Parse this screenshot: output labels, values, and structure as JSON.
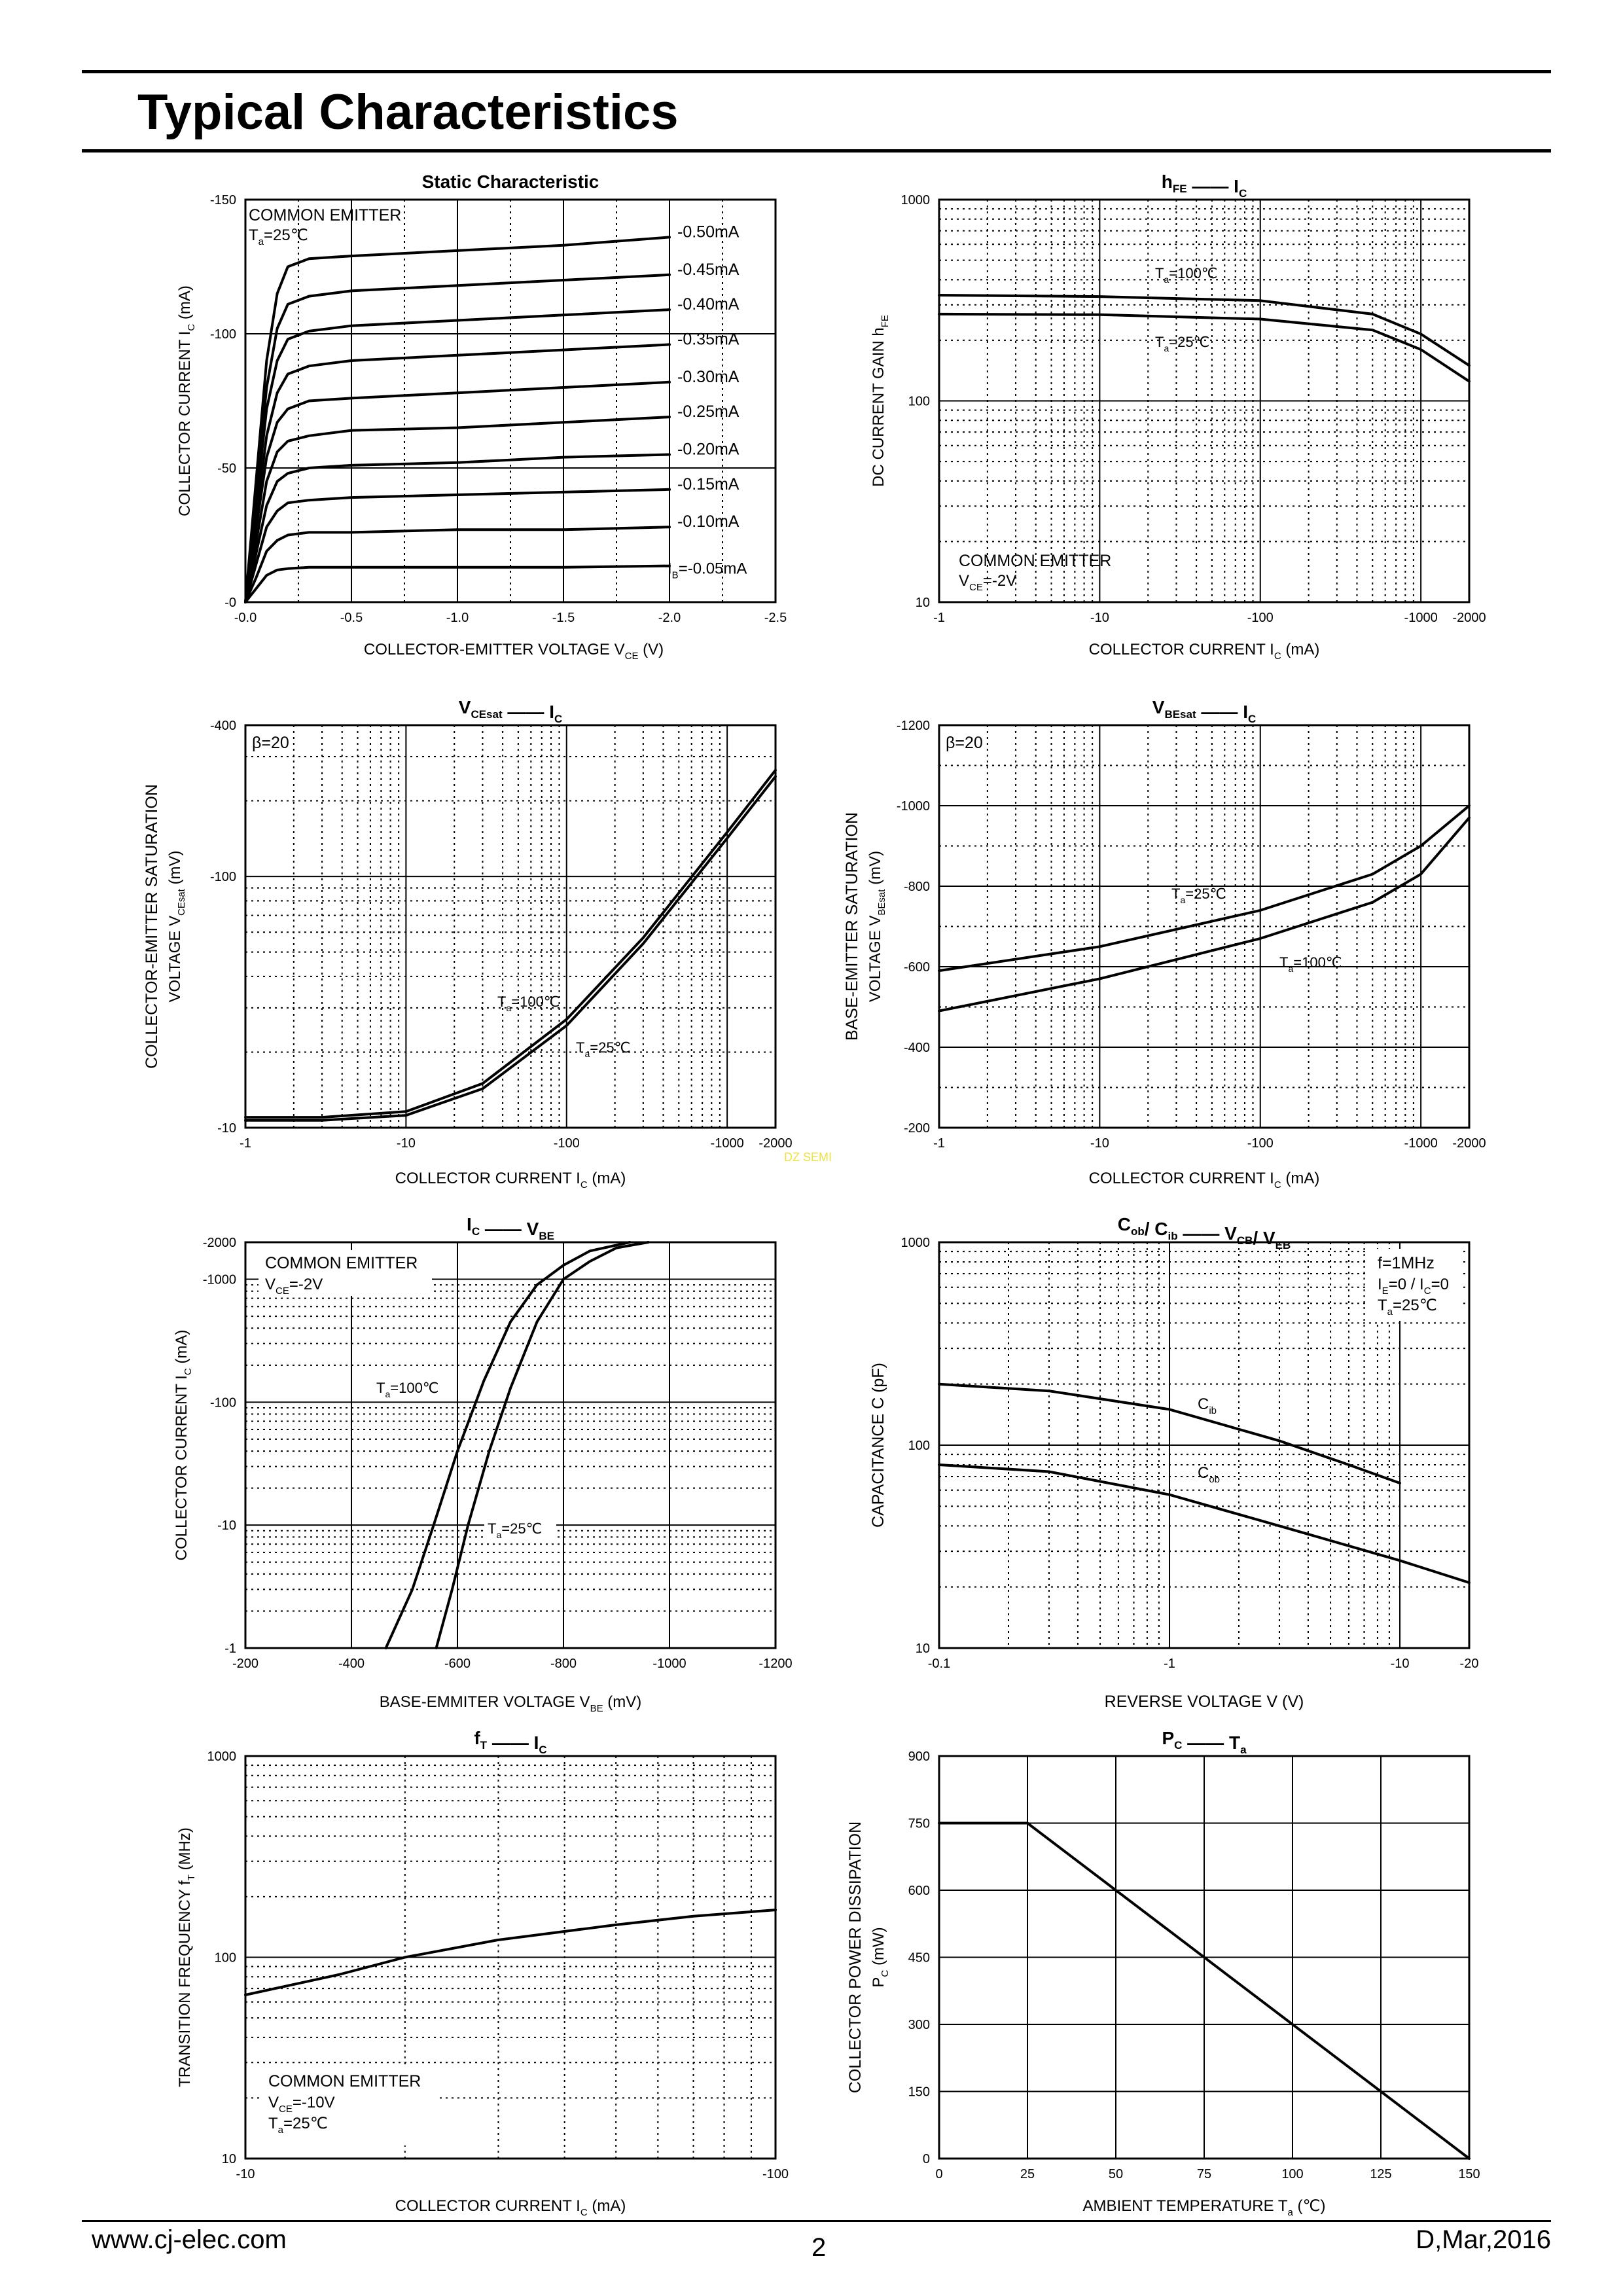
{
  "page": {
    "title": "Typical Characteristics",
    "footer": {
      "website": "www.cj-elec.com",
      "page_number": "2",
      "revision": "D,Mar,2016"
    },
    "watermark": "DZ SEMI"
  },
  "chart_data": [
    {
      "id": "static",
      "type": "line",
      "title": "Static Characteristic",
      "title_parts": [
        "Static Characteristic"
      ],
      "xscale": "linear",
      "yscale": "linear",
      "xlim": [
        0,
        -2.5
      ],
      "ylim": [
        0,
        -150
      ],
      "xticks": [
        0,
        -0.5,
        -1.0,
        -1.5,
        -2.0,
        -2.5
      ],
      "xtick_labels": [
        "-0.0",
        "-0.5",
        "-1.0",
        "-1.5",
        "-2.0",
        "-2.5"
      ],
      "yticks": [
        0,
        -50,
        -100,
        -150
      ],
      "ytick_labels": [
        "-0",
        "-50",
        "-100",
        "-150"
      ],
      "xlabel": "COLLECTOR-EMITTER VOLTAGE   V    (V)",
      "xlabel_sub": "CE",
      "ylabel": "COLLECTOR CURRENT   I    (mA)",
      "ylabel_sub": "C",
      "annotations": [
        "COMMON EMITTER",
        "T =25℃"
      ],
      "annotation_subs": [
        "",
        "a"
      ],
      "series": [
        {
          "name": "-0.50mA",
          "x": [
            0,
            -0.05,
            -0.1,
            -0.15,
            -0.2,
            -0.3,
            -0.5,
            -1.0,
            -1.5,
            -2.0
          ],
          "y": [
            0,
            -45,
            -90,
            -115,
            -125,
            -128,
            -129,
            -131,
            -133,
            -136
          ]
        },
        {
          "name": "-0.45mA",
          "x": [
            0,
            -0.05,
            -0.1,
            -0.15,
            -0.2,
            -0.3,
            -0.5,
            -1.0,
            -1.5,
            -2.0
          ],
          "y": [
            0,
            -40,
            -80,
            -102,
            -111,
            -114,
            -116,
            -118,
            -120,
            -122
          ]
        },
        {
          "name": "-0.40mA",
          "x": [
            0,
            -0.05,
            -0.1,
            -0.15,
            -0.2,
            -0.3,
            -0.5,
            -1.0,
            -1.5,
            -2.0
          ],
          "y": [
            0,
            -36,
            -72,
            -90,
            -98,
            -101,
            -103,
            -105,
            -107,
            -109
          ]
        },
        {
          "name": "-0.35mA",
          "x": [
            0,
            -0.05,
            -0.1,
            -0.15,
            -0.2,
            -0.3,
            -0.5,
            -1.0,
            -1.5,
            -2.0
          ],
          "y": [
            0,
            -31,
            -62,
            -78,
            -85,
            -88,
            -90,
            -92,
            -94,
            -96
          ]
        },
        {
          "name": "-0.30mA",
          "x": [
            0,
            -0.05,
            -0.1,
            -0.15,
            -0.2,
            -0.3,
            -0.5,
            -1.0,
            -1.5,
            -2.0
          ],
          "y": [
            0,
            -27,
            -54,
            -67,
            -72,
            -75,
            -76,
            -78,
            -80,
            -82
          ]
        },
        {
          "name": "-0.25mA",
          "x": [
            0,
            -0.05,
            -0.1,
            -0.15,
            -0.2,
            -0.3,
            -0.5,
            -1.0,
            -1.5,
            -2.0
          ],
          "y": [
            0,
            -22,
            -45,
            -56,
            -60,
            -62,
            -64,
            -65,
            -67,
            -69
          ]
        },
        {
          "name": "-0.20mA",
          "x": [
            0,
            -0.05,
            -0.1,
            -0.15,
            -0.2,
            -0.3,
            -0.5,
            -1.0,
            -1.5,
            -2.0
          ],
          "y": [
            0,
            -18,
            -36,
            -45,
            -48,
            -50,
            -51,
            -52,
            -54,
            -55
          ]
        },
        {
          "name": "-0.15mA",
          "x": [
            0,
            -0.05,
            -0.1,
            -0.15,
            -0.2,
            -0.3,
            -0.5,
            -1.0,
            -1.5,
            -2.0
          ],
          "y": [
            0,
            -14,
            -28,
            -34,
            -37,
            -38,
            -39,
            -40,
            -41,
            -42
          ]
        },
        {
          "name": "-0.10mA",
          "x": [
            0,
            -0.05,
            -0.1,
            -0.15,
            -0.2,
            -0.3,
            -0.5,
            -1.0,
            -1.5,
            -2.0
          ],
          "y": [
            0,
            -9,
            -19,
            -23,
            -25,
            -26,
            -26,
            -27,
            -27,
            -28
          ]
        },
        {
          "name": "I =-0.05mA",
          "name_sub": "B",
          "x": [
            0,
            -0.05,
            -0.1,
            -0.15,
            -0.2,
            -0.3,
            -0.5,
            -1.0,
            -1.5,
            -2.0
          ],
          "y": [
            0,
            -5,
            -10,
            -12,
            -12.5,
            -13,
            -13,
            -13,
            -13,
            -13.5
          ]
        }
      ]
    },
    {
      "id": "hfe",
      "type": "line",
      "title": "h      I",
      "title_parts": [
        "h",
        "FE",
        "I",
        "C"
      ],
      "xscale": "log",
      "yscale": "log",
      "xlim": [
        -1,
        -2000
      ],
      "ylim": [
        10,
        1000
      ],
      "xticks": [
        -1,
        -10,
        -100,
        -1000,
        -2000
      ],
      "xtick_labels": [
        "-1",
        "-10",
        "-100",
        "-1000",
        "-2000"
      ],
      "yticks": [
        10,
        100,
        1000
      ],
      "ytick_labels": [
        "10",
        "100",
        "1000"
      ],
      "xlabel": "COLLECTOR CURRENT   I    (mA)",
      "xlabel_sub": "C",
      "ylabel": "DC CURRENT GAIN    h",
      "ylabel_sub": "FE",
      "annotations": [
        "COMMON EMITTER",
        "V =-2V"
      ],
      "annotation_subs": [
        "",
        "CE"
      ],
      "series": [
        {
          "name": "T =100℃",
          "name_sub": "a",
          "x": [
            -1,
            -10,
            -100,
            -500,
            -1000,
            -2000
          ],
          "y": [
            335,
            330,
            315,
            270,
            215,
            150
          ]
        },
        {
          "name": "T =25℃",
          "name_sub": "a",
          "x": [
            -1,
            -10,
            -100,
            -500,
            -1000,
            -2000
          ],
          "y": [
            270,
            268,
            255,
            225,
            180,
            125
          ]
        }
      ]
    },
    {
      "id": "vcesat",
      "type": "line",
      "title": "V       I",
      "title_parts": [
        "V",
        "CEsat",
        "I",
        "C"
      ],
      "xscale": "log",
      "yscale": "log",
      "xlim": [
        -1,
        -2000
      ],
      "ylim": [
        -10,
        -400
      ],
      "xticks": [
        -1,
        -10,
        -100,
        -1000,
        -2000
      ],
      "xtick_labels": [
        "-1",
        "-10",
        "-100",
        "-1000",
        "-2000"
      ],
      "yticks": [
        -10,
        -100,
        -400
      ],
      "ytick_labels": [
        "-10",
        "-100",
        "-400"
      ],
      "xlabel": "COLLECTOR CURRENT   I    (mA)",
      "xlabel_sub": "C",
      "ylabel": "COLLECTOR-EMITTER SATURATION",
      "ylabel2": "VOLTAGE    V        (mV)",
      "ylabel2_sub": "CEsat",
      "annotations": [
        "β=20"
      ],
      "series": [
        {
          "name": "T =100℃",
          "name_sub": "a",
          "x": [
            -1,
            -3,
            -10,
            -30,
            -100,
            -300,
            -1000,
            -2000
          ],
          "y": [
            -11,
            -11,
            -11.6,
            -15,
            -27,
            -57,
            -150,
            -265
          ]
        },
        {
          "name": "T =25℃",
          "name_sub": "a",
          "x": [
            -1,
            -3,
            -10,
            -30,
            -100,
            -300,
            -1000,
            -2000
          ],
          "y": [
            -10.7,
            -10.7,
            -11.2,
            -14.3,
            -25.5,
            -54,
            -142,
            -250
          ]
        }
      ]
    },
    {
      "id": "vbesat",
      "type": "line",
      "title": "V       I",
      "title_parts": [
        "V",
        "BEsat",
        "I",
        "C"
      ],
      "xscale": "log",
      "yscale": "linear",
      "xlim": [
        -1,
        -2000
      ],
      "ylim": [
        -200,
        -1200
      ],
      "xticks": [
        -1,
        -10,
        -100,
        -1000,
        -2000
      ],
      "xtick_labels": [
        "-1",
        "-10",
        "-100",
        "-1000",
        "-2000"
      ],
      "yticks": [
        -200,
        -400,
        -600,
        -800,
        -1000,
        -1200
      ],
      "ytick_labels": [
        "-200",
        "-400",
        "-600",
        "-800",
        "-1000",
        "-1200"
      ],
      "xlabel": "COLLECTOR CURRENT   I    (mA)",
      "xlabel_sub": "C",
      "ylabel": "BASE-EMITTER SATURATION",
      "ylabel2": "VOLTAGE    V        (mV)",
      "ylabel2_sub": "BEsat",
      "annotations": [
        "β=20"
      ],
      "series": [
        {
          "name": "T =25℃",
          "name_sub": "a",
          "x": [
            -1,
            -10,
            -100,
            -500,
            -1000,
            -2000
          ],
          "y": [
            -590,
            -650,
            -740,
            -830,
            -900,
            -1000
          ]
        },
        {
          "name": "T =100℃",
          "name_sub": "a",
          "x": [
            -1,
            -10,
            -100,
            -500,
            -1000,
            -2000
          ],
          "y": [
            -490,
            -570,
            -670,
            -760,
            -830,
            -970
          ]
        }
      ]
    },
    {
      "id": "icvbe",
      "type": "line",
      "title": "I       V",
      "title_parts": [
        "I",
        "C",
        "V",
        "BE"
      ],
      "xscale": "linear",
      "yscale": "log",
      "xlim": [
        -200,
        -1200
      ],
      "ylim": [
        -1,
        -2000
      ],
      "xticks": [
        -200,
        -400,
        -600,
        -800,
        -1000,
        -1200
      ],
      "xtick_labels": [
        "-200",
        "-400",
        "-600",
        "-800",
        "-1000",
        "-1200"
      ],
      "yticks": [
        -1,
        -10,
        -100,
        -1000,
        -2000
      ],
      "ytick_labels": [
        "-1",
        "-10",
        "-100",
        "-1000",
        "-2000"
      ],
      "xlabel": "BASE-EMMITER VOLTAGE   V    (mV)",
      "xlabel_sub": "BE",
      "ylabel": "COLLECTOR CURRENT   I    (mA)",
      "ylabel_sub": "C",
      "annotations": [
        "COMMON EMITTER",
        "V =-2V"
      ],
      "annotation_subs": [
        "",
        "CE"
      ],
      "series": [
        {
          "name": "T =100℃",
          "name_sub": "a",
          "x": [
            -465,
            -515,
            -555,
            -600,
            -650,
            -700,
            -750,
            -800,
            -850,
            -925
          ],
          "y": [
            -1,
            -3,
            -10,
            -40,
            -150,
            -450,
            -900,
            -1300,
            -1700,
            -2400
          ]
        },
        {
          "name": "T =25℃",
          "name_sub": "a",
          "x": [
            -560,
            -590,
            -620,
            -660,
            -700,
            -750,
            -800,
            -850,
            -900,
            -960
          ],
          "y": [
            -1,
            -3,
            -10,
            -40,
            -130,
            -450,
            -1000,
            -1400,
            -1800,
            -2400
          ]
        }
      ]
    },
    {
      "id": "cap",
      "type": "line",
      "title": "C  / C       V  / V",
      "title_parts": [
        "C",
        "ob",
        "/ C",
        "ib",
        "V",
        "CB",
        "/ V",
        "EB"
      ],
      "xscale": "log",
      "yscale": "log",
      "xlim": [
        -0.1,
        -20
      ],
      "ylim": [
        10,
        1000
      ],
      "xticks": [
        -0.1,
        -1,
        -10,
        -20
      ],
      "xtick_labels": [
        "-0.1",
        "-1",
        "-10",
        "-20"
      ],
      "yticks": [
        10,
        100,
        1000
      ],
      "ytick_labels": [
        "10",
        "100",
        "1000"
      ],
      "xlabel": "REVERSE VOLTAGE   V   (V)",
      "ylabel": "CAPACITANCE    C    (pF)",
      "annotations": [
        "f=1MHz",
        "I =0 / I =0",
        "T =25℃"
      ],
      "annotation_subs": [
        "",
        "E",
        "a"
      ],
      "series": [
        {
          "name": "C",
          "name_sub": "ib",
          "x": [
            -0.1,
            -0.3,
            -1,
            -3,
            -6,
            -10
          ],
          "y": [
            200,
            185,
            150,
            105,
            80,
            65
          ]
        },
        {
          "name": "C",
          "name_sub": "ob",
          "x": [
            -0.1,
            -0.3,
            -1,
            -3,
            -10,
            -20
          ],
          "y": [
            80,
            74,
            57,
            40,
            27,
            21
          ]
        }
      ]
    },
    {
      "id": "ft",
      "type": "line",
      "title": "f      I",
      "title_parts": [
        "f",
        "T",
        "I",
        "C"
      ],
      "xscale": "log",
      "yscale": "log",
      "xlim": [
        -10,
        -100
      ],
      "ylim": [
        10,
        1000
      ],
      "xticks": [
        -10,
        -100
      ],
      "xtick_labels": [
        "-10",
        "-100"
      ],
      "yticks": [
        10,
        100,
        1000
      ],
      "ytick_labels": [
        "10",
        "100",
        "1000"
      ],
      "xlabel": "COLLECTOR CURRENT   I    (mA)",
      "xlabel_sub": "C",
      "ylabel": "TRANSITION FREQUENCY   f    (MHz)",
      "ylabel_sub": "T",
      "annotations": [
        "COMMON EMITTER",
        "V =-10V",
        "T =25℃"
      ],
      "annotation_subs": [
        "",
        "CE",
        "a"
      ],
      "series": [
        {
          "name": "fT",
          "x": [
            -10,
            -15,
            -20,
            -30,
            -50,
            -70,
            -100
          ],
          "y": [
            65,
            82,
            100,
            122,
            145,
            160,
            172
          ]
        }
      ]
    },
    {
      "id": "pc",
      "type": "line",
      "title": "P      T",
      "title_parts": [
        "P",
        "C",
        "T",
        "a"
      ],
      "xscale": "linear",
      "yscale": "linear",
      "xlim": [
        0,
        150
      ],
      "ylim": [
        0,
        900
      ],
      "xticks": [
        0,
        25,
        50,
        75,
        100,
        125,
        150
      ],
      "xtick_labels": [
        "0",
        "25",
        "50",
        "75",
        "100",
        "125",
        "150"
      ],
      "yticks": [
        0,
        150,
        300,
        450,
        600,
        750,
        900
      ],
      "ytick_labels": [
        "0",
        "150",
        "300",
        "450",
        "600",
        "750",
        "900"
      ],
      "xlabel": "AMBIENT TEMPERATURE   T    (℃)",
      "xlabel_sub": "a",
      "ylabel": "COLLECTOR POWER DISSIPATION",
      "ylabel2": "P    (mW)",
      "ylabel2_sub": "C",
      "series": [
        {
          "name": "PC",
          "x": [
            0,
            25,
            150
          ],
          "y": [
            750,
            750,
            0
          ]
        }
      ]
    }
  ]
}
